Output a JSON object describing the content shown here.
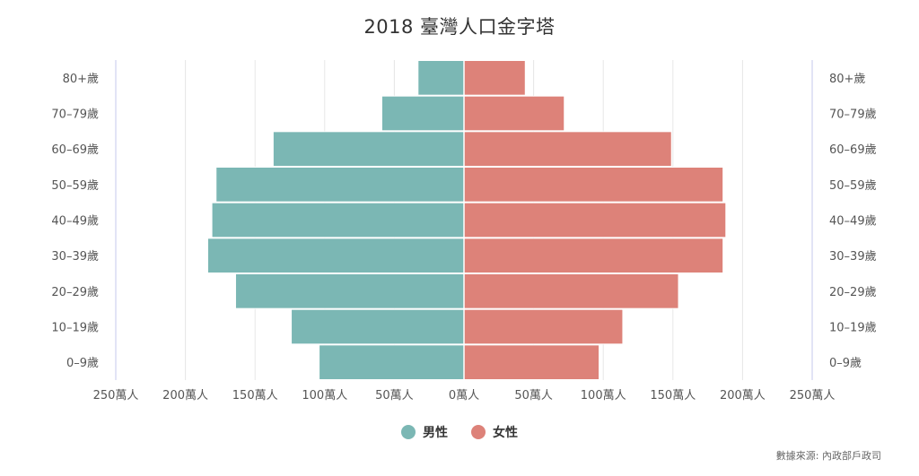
{
  "chart_data": {
    "type": "bar",
    "orientation": "horizontal-population-pyramid",
    "title": "2018 臺灣人口金字塔",
    "categories": [
      "0–9歲",
      "10–19歲",
      "20–29歲",
      "30–39歲",
      "40–49歲",
      "50–59歲",
      "60–69歲",
      "70–79歲",
      "80+歲"
    ],
    "series": [
      {
        "name": "男性",
        "color": "#7bb7b4",
        "side": "left",
        "values": [
          104,
          124,
          164,
          184,
          181,
          178,
          137,
          59,
          33
        ]
      },
      {
        "name": "女性",
        "color": "#dd8279",
        "side": "right",
        "values": [
          97,
          114,
          154,
          186,
          188,
          186,
          149,
          72,
          44
        ]
      }
    ],
    "xlim": [
      -250,
      250
    ],
    "x_ticks": [
      -250,
      -200,
      -150,
      -100,
      -50,
      0,
      50,
      100,
      150,
      200,
      250
    ],
    "x_tick_labels": [
      "250萬人",
      "200萬人",
      "150萬人",
      "100萬人",
      "50萬人",
      "0萬人",
      "50萬人",
      "100萬人",
      "150萬人",
      "200萬人",
      "250萬人"
    ],
    "grid": true,
    "legend_position": "bottom-center"
  },
  "source": "數據來源: 內政部戶政司"
}
